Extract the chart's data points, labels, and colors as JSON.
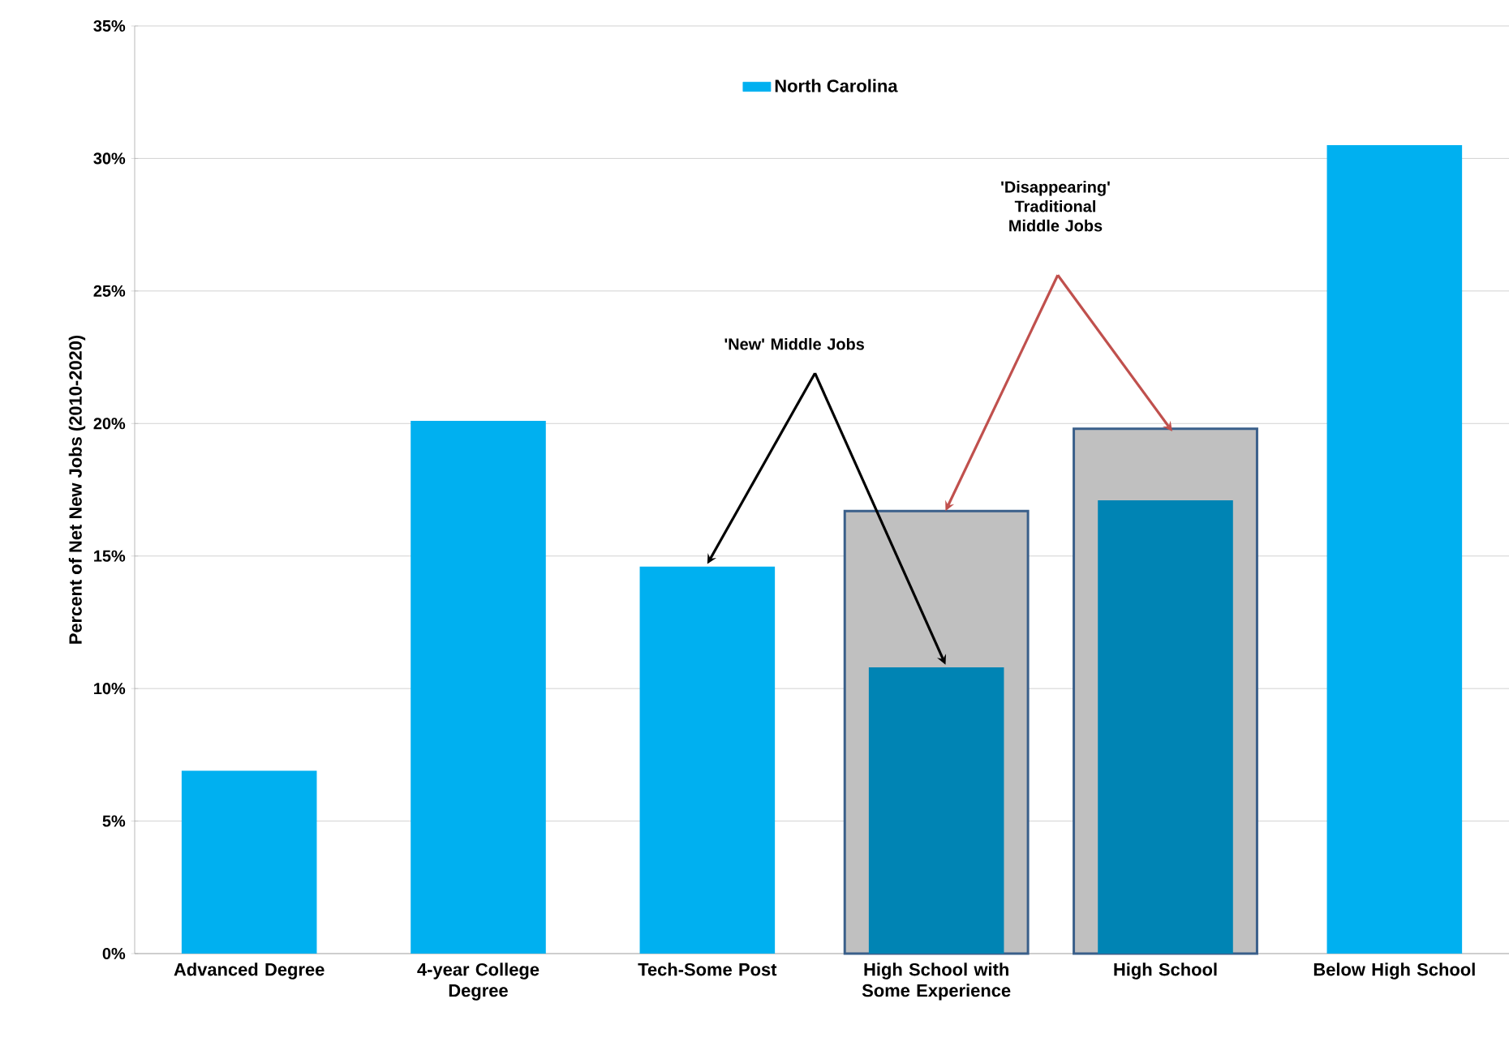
{
  "chart_data": {
    "type": "bar",
    "ylabel": "Percent of Net New Jobs (2010-2020)",
    "categories": [
      "Advanced Degree",
      "4-year College Degree",
      "Tech-Some Post",
      "High School with Some Experience",
      "High School",
      "Below High School"
    ],
    "series": [
      {
        "color": "#c0c0c0",
        "values": [
          null,
          null,
          null,
          16.7,
          19.8,
          null
        ]
      },
      {
        "name": "North Carolina",
        "color": "#00b0f0",
        "colors": [
          "#00b0f0",
          "#00b0f0",
          "#00b0f0",
          "#0084b4",
          "#0084b4",
          "#00b0f0"
        ],
        "values": [
          6.9,
          20.1,
          14.6,
          10.8,
          17.1,
          30.5
        ]
      }
    ],
    "ylim": [
      0,
      35
    ],
    "yticks": [
      {
        "value": 0,
        "label": "0%"
      },
      {
        "value": 5,
        "label": "5%"
      },
      {
        "value": 10,
        "label": "10%"
      },
      {
        "value": 15,
        "label": "15%"
      },
      {
        "value": 20,
        "label": "20%"
      },
      {
        "value": 25,
        "label": "25%"
      },
      {
        "value": 30,
        "label": "30%"
      },
      {
        "value": 35,
        "label": "35%"
      }
    ],
    "grid": "y",
    "legend": "top",
    "annotations": [
      "'New' Middle Jobs",
      "'Disappearing' Traditional Middle Jobs"
    ]
  }
}
